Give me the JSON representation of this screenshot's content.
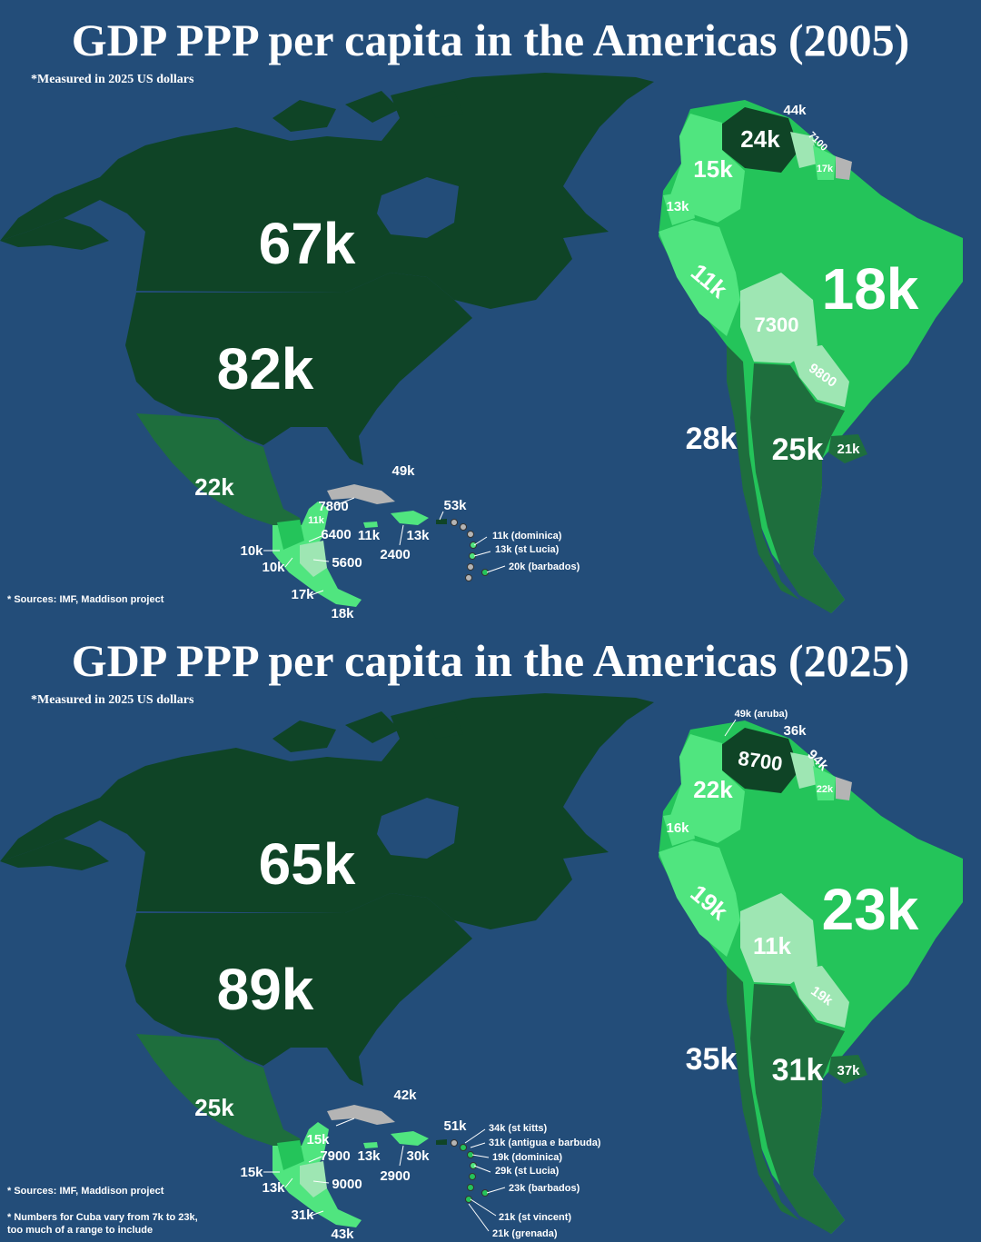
{
  "colors": {
    "ocean": "#234d79",
    "tier_darkest": "#0f4426",
    "tier_dark": "#1e6e3d",
    "tier_mid": "#24c45a",
    "tier_light": "#50e57f",
    "tier_pale": "#9ee6b3",
    "no_data": "#b4b4b4"
  },
  "maps": [
    {
      "title": "GDP PPP per capita in the Americas (2005)",
      "subtitle": "*Measured in 2025 US dollars",
      "notes": [
        "* Sources: IMF, Maddison project"
      ],
      "regions": {
        "canada": "67k",
        "usa": "82k",
        "mexico": "22k",
        "guatemala": "7800",
        "belize": "11k",
        "honduras": "6400",
        "el_salvador": "10k",
        "nicaragua": "5600",
        "costa_rica": "17k",
        "panama": "18k",
        "guatemala_west": "10k",
        "cuba": "49k",
        "jamaica": "11k",
        "haiti": "2400",
        "dominican_rep": "13k",
        "puerto_rico": "53k",
        "dominica": "11k (dominica)",
        "st_lucia": "13k (st Lucia)",
        "barbados": "20k (barbados)",
        "venezuela": "24k",
        "colombia": "15k",
        "trinidad": "44k",
        "guyana": "7100",
        "suriname": "17k",
        "ecuador": "13k",
        "peru": "11k",
        "brazil": "18k",
        "bolivia": "7300",
        "paraguay": "9800",
        "chile": "28k",
        "argentina": "25k",
        "uruguay": "21k"
      }
    },
    {
      "title": "GDP PPP per capita in the Americas (2025)",
      "subtitle": "*Measured in 2025 US dollars",
      "notes": [
        "* Sources: IMF, Maddison project",
        "* Numbers for Cuba vary from 7k to 23k,",
        "too much of a range to include"
      ],
      "regions": {
        "canada": "65k",
        "usa": "89k",
        "mexico": "25k",
        "guatemala": "7900",
        "belize": "15k",
        "honduras": "9000",
        "el_salvador": "13k",
        "guatemala_west": "15k",
        "costa_rica": "31k",
        "panama": "43k",
        "jamaica": "13k",
        "haiti": "2900",
        "dominican_rep": "30k",
        "bahamas": "42k",
        "puerto_rico": "51k",
        "st_kitts": "34k (st kitts)",
        "antigua": "31k (antigua e barbuda)",
        "dominica": "19k (dominica)",
        "st_lucia": "29k (st Lucia)",
        "barbados": "23k (barbados)",
        "st_vincent": "21k (st vincent)",
        "grenada": "21k (grenada)",
        "aruba": "49k (aruba)",
        "trinidad": "36k",
        "venezuela": "8700",
        "guyana": "94k",
        "suriname": "22k",
        "colombia": "22k",
        "ecuador": "16k",
        "peru": "19k",
        "brazil": "23k",
        "bolivia": "11k",
        "paraguay": "19k",
        "chile": "35k",
        "argentina": "31k",
        "uruguay": "37k"
      }
    }
  ]
}
